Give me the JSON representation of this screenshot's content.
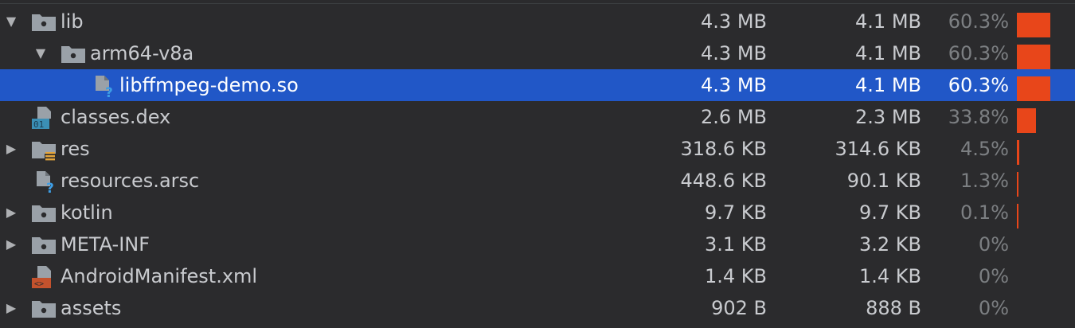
{
  "colors": {
    "background": "#2b2b2d",
    "selection": "#2157c7",
    "bar": "#e8461a",
    "text": "#c9cbcf",
    "muted_text": "#7c7f82"
  },
  "rows": [
    {
      "name": "lib",
      "raw": "4.3 MB",
      "download": "4.1 MB",
      "percent": "60.3%",
      "share": 0.603,
      "depth": 0,
      "expander": "expanded",
      "icon": "folder-icon",
      "selected": false
    },
    {
      "name": "arm64-v8a",
      "raw": "4.3 MB",
      "download": "4.1 MB",
      "percent": "60.3%",
      "share": 0.603,
      "depth": 1,
      "expander": "expanded",
      "icon": "folder-icon",
      "selected": false
    },
    {
      "name": "libffmpeg-demo.so",
      "raw": "4.3 MB",
      "download": "4.1 MB",
      "percent": "60.3%",
      "share": 0.603,
      "depth": 2,
      "expander": "none",
      "icon": "unknown-file-icon",
      "selected": true
    },
    {
      "name": "classes.dex",
      "raw": "2.6 MB",
      "download": "2.3 MB",
      "percent": "33.8%",
      "share": 0.338,
      "depth": 0,
      "expander": "none",
      "icon": "dex-file-icon",
      "selected": false
    },
    {
      "name": "res",
      "raw": "318.6 KB",
      "download": "314.6 KB",
      "percent": "4.5%",
      "share": 0.045,
      "depth": 0,
      "expander": "collapsed",
      "icon": "resource-folder-icon",
      "selected": false
    },
    {
      "name": "resources.arsc",
      "raw": "448.6 KB",
      "download": "90.1 KB",
      "percent": "1.3%",
      "share": 0.013,
      "depth": 0,
      "expander": "none",
      "icon": "unknown-file-icon",
      "selected": false
    },
    {
      "name": "kotlin",
      "raw": "9.7 KB",
      "download": "9.7 KB",
      "percent": "0.1%",
      "share": 0.001,
      "depth": 0,
      "expander": "collapsed",
      "icon": "folder-icon",
      "selected": false
    },
    {
      "name": "META-INF",
      "raw": "3.1 KB",
      "download": "3.2 KB",
      "percent": "0%",
      "share": 0,
      "depth": 0,
      "expander": "collapsed",
      "icon": "folder-icon",
      "selected": false
    },
    {
      "name": "AndroidManifest.xml",
      "raw": "1.4 KB",
      "download": "1.4 KB",
      "percent": "0%",
      "share": 0,
      "depth": 0,
      "expander": "none",
      "icon": "xml-file-icon",
      "selected": false
    },
    {
      "name": "assets",
      "raw": "902 B",
      "download": "888 B",
      "percent": "0%",
      "share": 0,
      "depth": 0,
      "expander": "collapsed",
      "icon": "folder-icon",
      "selected": false
    }
  ]
}
